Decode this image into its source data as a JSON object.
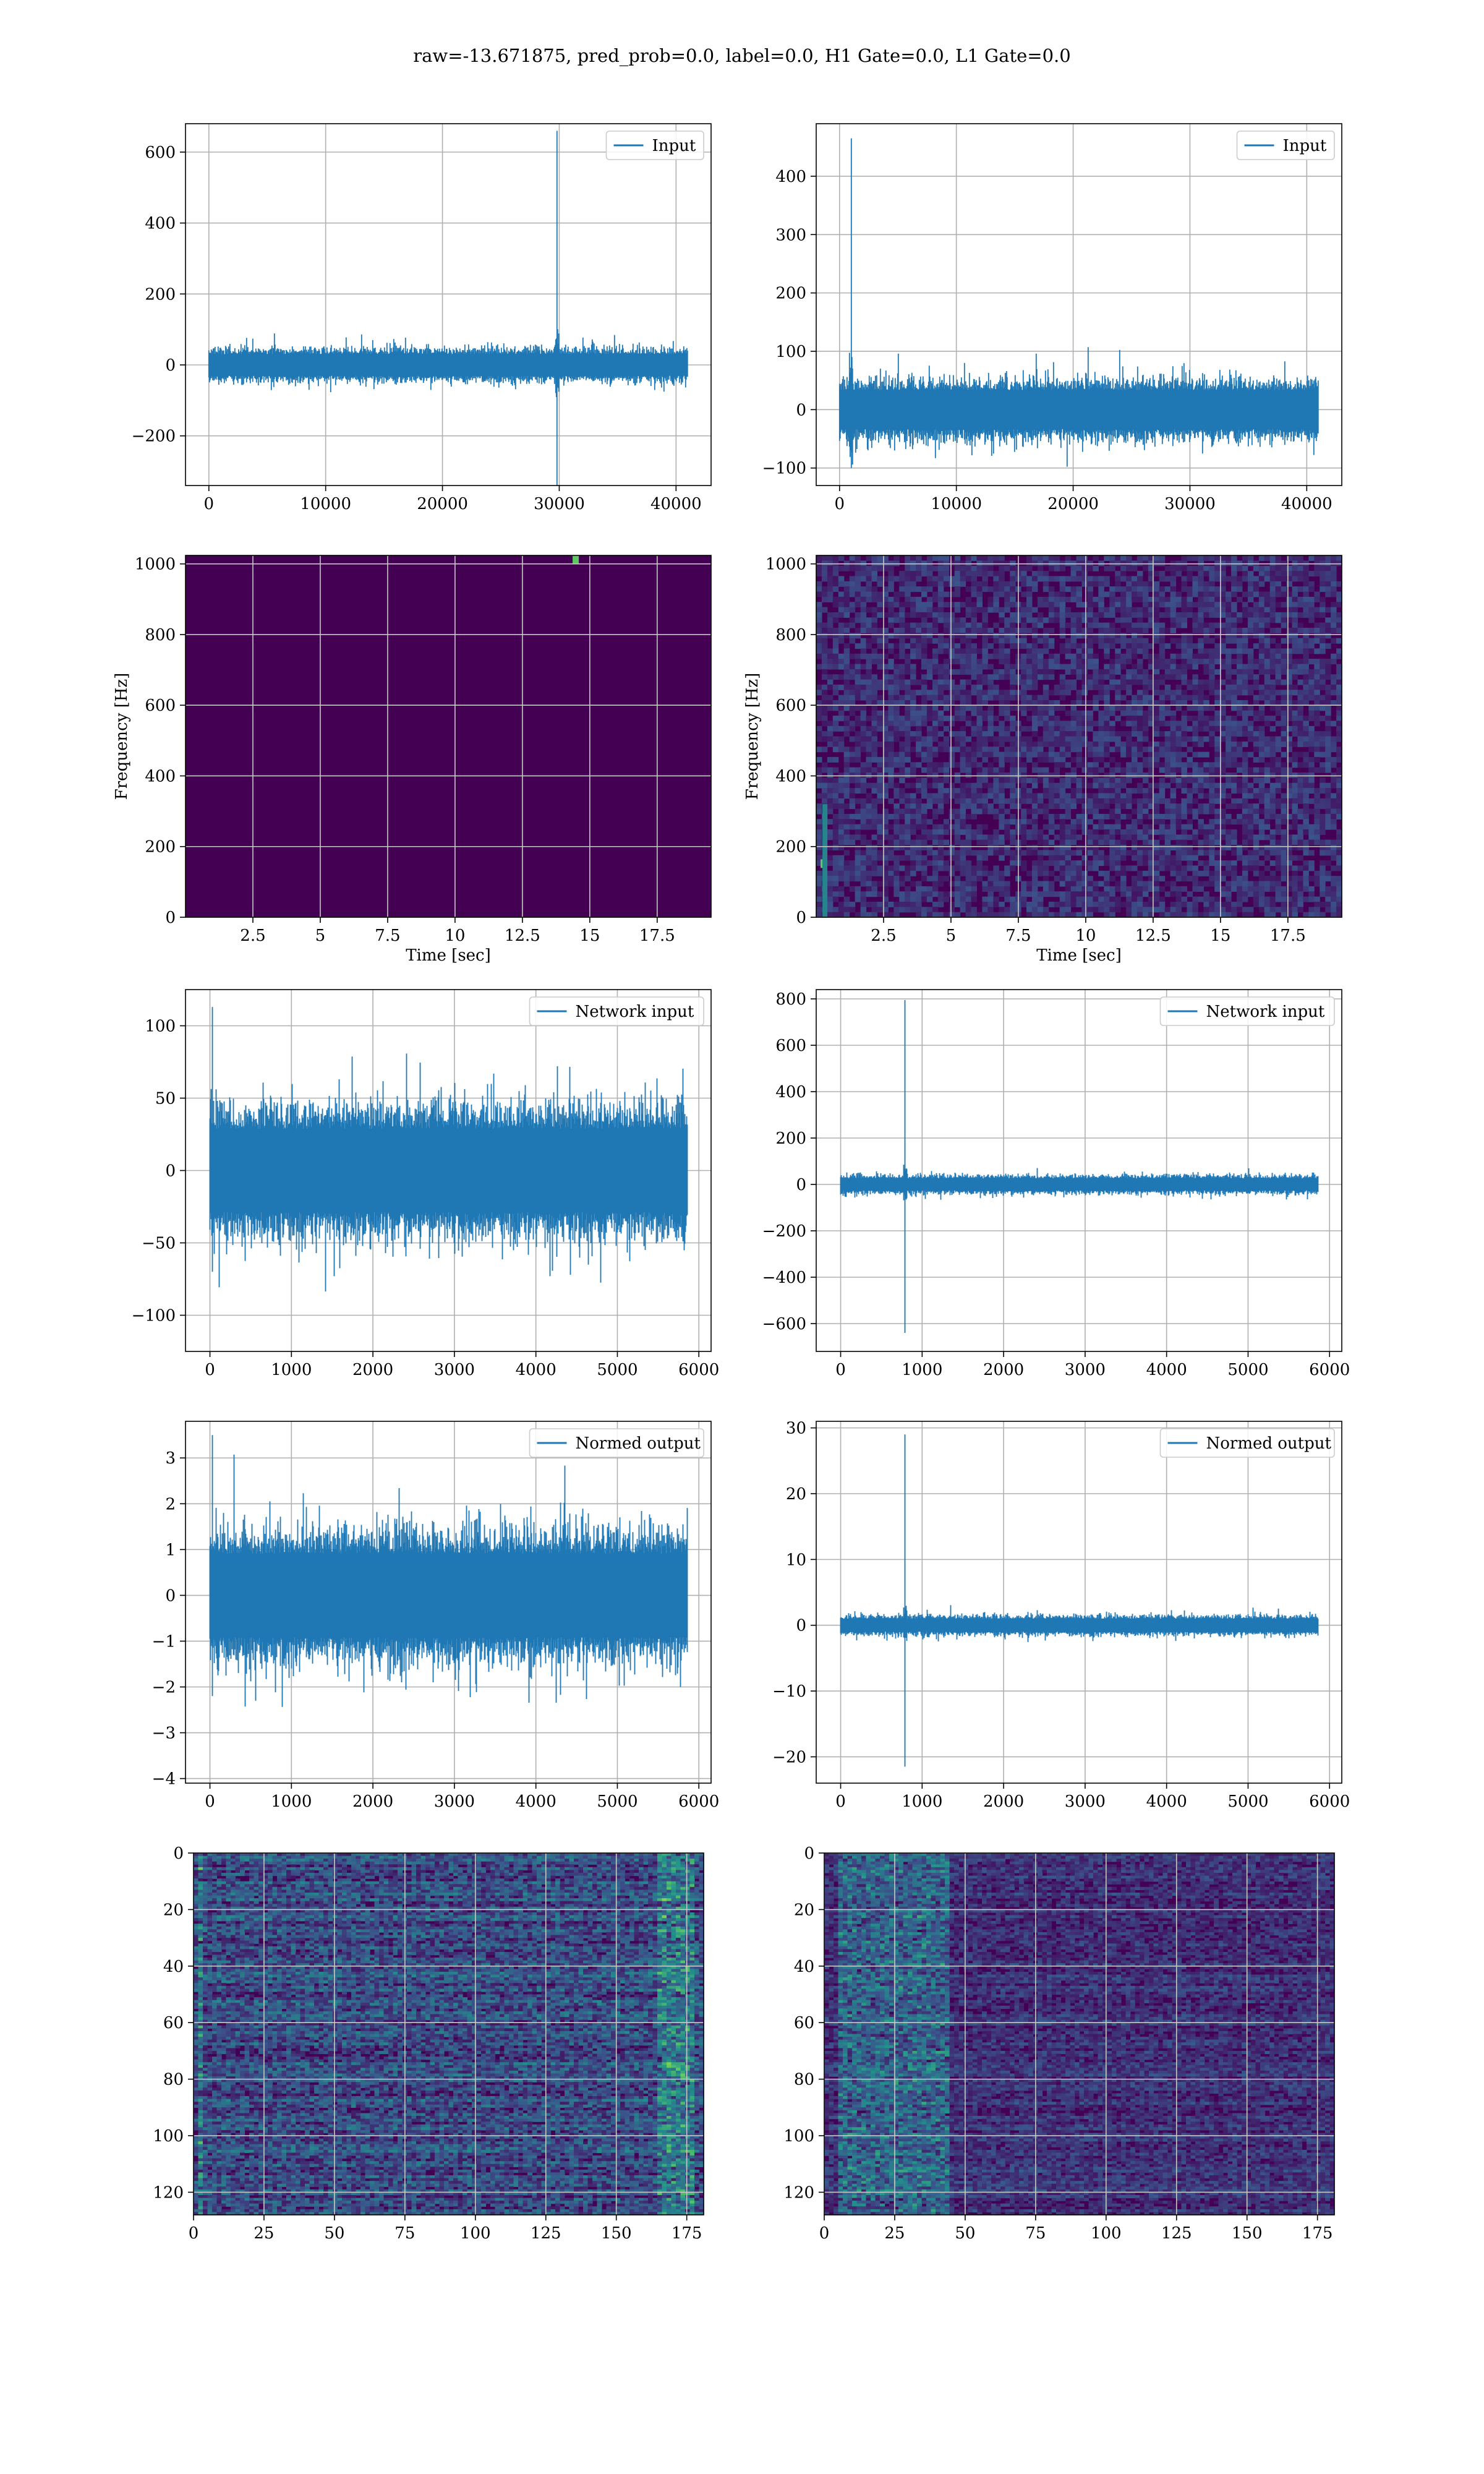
{
  "figure": {
    "suptitle": "raw=-13.671875, pred_prob=0.0, label=0.0, H1 Gate=0.0, L1 Gate=0.0"
  },
  "colors": {
    "line": "#1f77b4",
    "grid": "#b0b0b0",
    "heat_bg": "#440154",
    "heat_mid": "#31688e",
    "heat_hi": "#35b779"
  },
  "chart_data": [
    {
      "id": "input-h1",
      "type": "line",
      "legend_location": "top-right",
      "grid": true,
      "series": [
        {
          "name": "Input"
        }
      ],
      "xlim": [
        -2000,
        43000
      ],
      "ylim": [
        -340,
        680
      ],
      "xticks": [
        0,
        10000,
        20000,
        30000,
        40000
      ],
      "yticks": [
        -200,
        0,
        200,
        400,
        600
      ],
      "signal": {
        "n": 40960,
        "noise_amp": 100,
        "spike_x": 29800,
        "spike_max": 660,
        "spike_min": -340
      }
    },
    {
      "id": "input-l1",
      "type": "line",
      "legend_location": "top-right",
      "grid": true,
      "series": [
        {
          "name": "Input"
        }
      ],
      "xlim": [
        -2000,
        43000
      ],
      "ylim": [
        -130,
        490
      ],
      "xticks": [
        0,
        10000,
        20000,
        30000,
        40000
      ],
      "yticks": [
        -100,
        0,
        100,
        200,
        300,
        400
      ],
      "signal": {
        "n": 40960,
        "noise_amp": 110,
        "spike_x": 1000,
        "spike_max": 465,
        "spike_min": -100
      }
    },
    {
      "id": "spectrogram-h1",
      "type": "heatmap",
      "grid": true,
      "xlabel": "Time [sec]",
      "ylabel": "Frequency [Hz]",
      "xlim": [
        0,
        19.5
      ],
      "ylim": [
        0,
        1024
      ],
      "xticks": [
        2.5,
        5.0,
        7.5,
        10.0,
        12.5,
        15.0,
        17.5
      ],
      "yticks": [
        0,
        200,
        400,
        600,
        800,
        1000
      ],
      "noise_level": 0.03,
      "hot_spots": [
        {
          "t": 14.5,
          "f": 1010
        }
      ]
    },
    {
      "id": "spectrogram-l1",
      "type": "heatmap",
      "grid": true,
      "xlabel": "Time [sec]",
      "ylabel": "Frequency [Hz]",
      "xlim": [
        0,
        19.5
      ],
      "ylim": [
        0,
        1024
      ],
      "xticks": [
        2.5,
        5.0,
        7.5,
        10.0,
        12.5,
        15.0,
        17.5
      ],
      "yticks": [
        0,
        200,
        400,
        600,
        800,
        1000
      ],
      "noise_level": 0.25,
      "hot_spots": [
        {
          "t": 0.3,
          "f": 150
        }
      ]
    },
    {
      "id": "network-input-h1",
      "type": "line",
      "legend_location": "top-right",
      "grid": true,
      "series": [
        {
          "name": "Network input"
        }
      ],
      "xlim": [
        -300,
        6150
      ],
      "ylim": [
        -125,
        125
      ],
      "xticks": [
        0,
        1000,
        2000,
        3000,
        4000,
        5000,
        6000
      ],
      "yticks": [
        -100,
        -50,
        0,
        50,
        100
      ],
      "signal": {
        "n": 5857,
        "noise_amp": 95,
        "spike_x": 30,
        "spike_max": 113,
        "spike_min": -70
      }
    },
    {
      "id": "network-input-l1",
      "type": "line",
      "legend_location": "top-right",
      "grid": true,
      "series": [
        {
          "name": "Network input"
        }
      ],
      "xlim": [
        -300,
        6150
      ],
      "ylim": [
        -720,
        840
      ],
      "xticks": [
        0,
        1000,
        2000,
        3000,
        4000,
        5000,
        6000
      ],
      "yticks": [
        -600,
        -400,
        -200,
        0,
        200,
        400,
        600,
        800
      ],
      "signal": {
        "n": 5857,
        "noise_amp": 85,
        "spike_x": 790,
        "spike_max": 795,
        "spike_min": -640
      }
    },
    {
      "id": "normed-output-h1",
      "type": "line",
      "legend_location": "top-right",
      "grid": true,
      "series": [
        {
          "name": "Normed output"
        }
      ],
      "xlim": [
        -300,
        6150
      ],
      "ylim": [
        -4.1,
        3.8
      ],
      "xticks": [
        0,
        1000,
        2000,
        3000,
        4000,
        5000,
        6000
      ],
      "yticks": [
        -4,
        -3,
        -2,
        -1,
        0,
        1,
        2,
        3
      ],
      "signal": {
        "n": 5857,
        "noise_amp": 3.0,
        "spike_x": 30,
        "spike_max": 3.5,
        "spike_min": -2.2
      }
    },
    {
      "id": "normed-output-l1",
      "type": "line",
      "legend_location": "top-right",
      "grid": true,
      "series": [
        {
          "name": "Normed output"
        }
      ],
      "xlim": [
        -300,
        6150
      ],
      "ylim": [
        -24,
        31
      ],
      "xticks": [
        0,
        1000,
        2000,
        3000,
        4000,
        5000,
        6000
      ],
      "yticks": [
        -20,
        -10,
        0,
        10,
        20,
        30
      ],
      "signal": {
        "n": 5857,
        "noise_amp": 3.2,
        "spike_x": 790,
        "spike_max": 29,
        "spike_min": -21.5
      }
    },
    {
      "id": "features-h1",
      "type": "heatmap",
      "grid": true,
      "xlim": [
        0,
        181
      ],
      "ylim": [
        128,
        0
      ],
      "y_inverted": true,
      "xticks": [
        0,
        25,
        50,
        75,
        100,
        125,
        150,
        175
      ],
      "yticks": [
        0,
        20,
        40,
        60,
        80,
        100,
        120
      ],
      "noise_level": 0.35,
      "band_column_hi": [
        1,
        3,
        165,
        178
      ]
    },
    {
      "id": "features-l1",
      "type": "heatmap",
      "grid": true,
      "xlim": [
        0,
        181
      ],
      "ylim": [
        128,
        0
      ],
      "y_inverted": true,
      "xticks": [
        0,
        25,
        50,
        75,
        100,
        125,
        150,
        175
      ],
      "yticks": [
        0,
        20,
        40,
        60,
        80,
        100,
        120
      ],
      "noise_level": 0.22,
      "band_column_hi": [
        5,
        45
      ]
    }
  ]
}
